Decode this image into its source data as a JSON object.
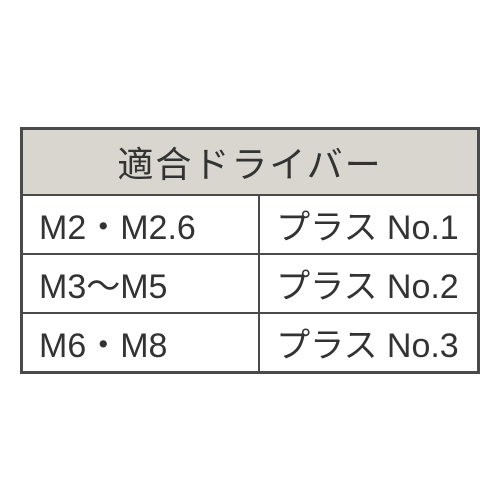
{
  "table": {
    "header": "適合ドライバー",
    "rows": [
      {
        "size": "M2・M2.6",
        "driver": "プラス No.1"
      },
      {
        "size": "M3〜M5",
        "driver": "プラス No.2"
      },
      {
        "size": "M6・M8",
        "driver": "プラス No.3"
      }
    ],
    "colors": {
      "header_bg": "#d9d6cf",
      "border": "#4a4a4a",
      "text": "#333333",
      "background": "#ffffff"
    },
    "font_size_header": 36,
    "font_size_cell": 34
  }
}
